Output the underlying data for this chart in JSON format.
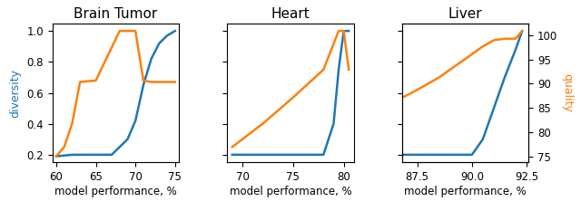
{
  "subplots": [
    {
      "title": "Brain Tumor",
      "xlabel": "model performance, %",
      "xlim": [
        59.5,
        75.5
      ],
      "xticks": [
        60,
        65,
        70,
        75
      ],
      "xticklabels": [
        "60",
        "65",
        "70",
        "75"
      ],
      "blue_x": [
        60.0,
        62.0,
        63.0,
        65.0,
        67.0,
        68.0,
        69.0,
        70.0,
        71.0,
        72.0,
        73.0,
        74.0,
        75.0
      ],
      "blue_y": [
        0.19,
        0.2,
        0.2,
        0.2,
        0.2,
        0.25,
        0.3,
        0.42,
        0.65,
        0.82,
        0.92,
        0.97,
        1.0
      ],
      "orange_x": [
        60.0,
        61.0,
        62.0,
        63.0,
        65.0,
        68.0,
        70.0,
        71.0,
        72.0,
        73.0,
        74.0,
        75.0
      ],
      "orange_y": [
        0.19,
        0.25,
        0.4,
        0.67,
        0.68,
        1.0,
        1.0,
        0.68,
        0.67,
        0.67,
        0.67,
        0.67
      ],
      "has_left_ylabel": true,
      "has_right_ylabel": false
    },
    {
      "title": "Heart",
      "xlabel": "model performance, %",
      "xlim": [
        68.5,
        81.0
      ],
      "xticks": [
        70,
        75,
        80
      ],
      "xticklabels": [
        "70",
        "75",
        "80"
      ],
      "blue_x": [
        69.0,
        72.0,
        75.0,
        78.0,
        79.0,
        79.5,
        80.0,
        80.5
      ],
      "blue_y": [
        0.2,
        0.2,
        0.2,
        0.2,
        0.4,
        0.75,
        1.0,
        1.0
      ],
      "orange_x": [
        69.0,
        72.0,
        75.0,
        78.0,
        79.5,
        80.0,
        80.5
      ],
      "orange_y": [
        0.25,
        0.4,
        0.57,
        0.75,
        1.0,
        1.0,
        0.75
      ],
      "has_left_ylabel": false,
      "has_right_ylabel": false
    },
    {
      "title": "Liver",
      "xlabel": "model performance, %",
      "xlim": [
        86.8,
        92.6
      ],
      "xticks": [
        87.5,
        90.0,
        92.5
      ],
      "xticklabels": [
        "87.5",
        "90.0",
        "92.5"
      ],
      "blue_x": [
        86.9,
        88.0,
        89.0,
        90.0,
        90.5,
        91.0,
        91.5,
        92.0,
        92.3
      ],
      "blue_y": [
        0.2,
        0.2,
        0.2,
        0.2,
        0.3,
        0.5,
        0.7,
        0.88,
        1.0
      ],
      "orange_x": [
        86.9,
        87.5,
        88.5,
        89.5,
        90.5,
        91.0,
        91.5,
        92.0,
        92.3
      ],
      "orange_y": [
        0.575,
        0.62,
        0.7,
        0.8,
        0.9,
        0.94,
        0.95,
        0.95,
        1.0
      ],
      "has_left_ylabel": false,
      "has_right_ylabel": true
    }
  ],
  "ylim": [
    0.15,
    1.05
  ],
  "yticks": [
    0.2,
    0.4,
    0.6,
    0.8,
    1.0
  ],
  "quality_yticks": [
    75,
    80,
    85,
    90,
    95,
    100
  ],
  "quality_ylim": [
    73.75,
    102.5
  ],
  "left_ylabel": "diversity",
  "right_ylabel": "quality",
  "blue_color": "#1f77b4",
  "orange_color": "#ff7f0e",
  "left_ylabel_color": "#1f77b4",
  "right_ylabel_color": "#ff7f0e",
  "title_fontsize": 11,
  "label_fontsize": 8.5,
  "tick_fontsize": 8.5,
  "ylabel_fontsize": 9,
  "linewidth": 1.8
}
